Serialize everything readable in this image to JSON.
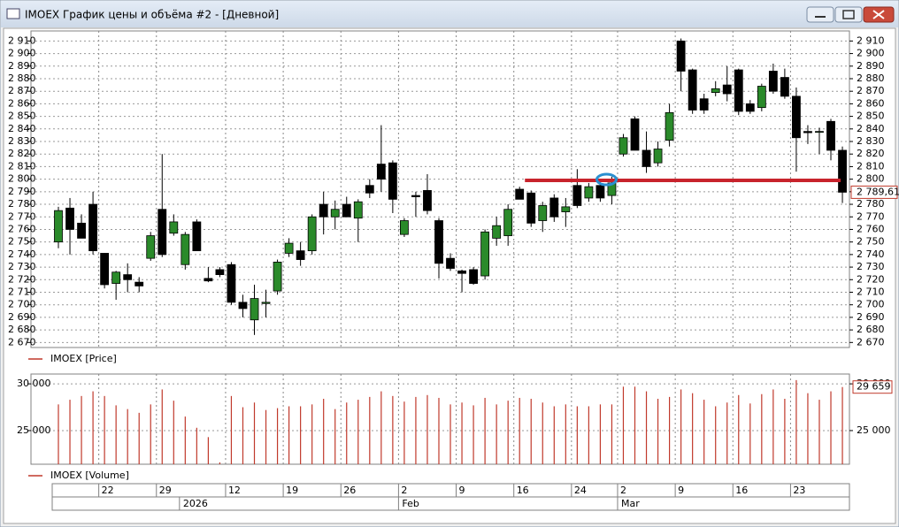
{
  "window_title": "IMOEX График цены и объёма #2 - [Дневной]",
  "chart_data": [
    {
      "type": "candlestick",
      "legend": "IMOEX [Price]",
      "up_color": "#2a8a2a",
      "down_color": "#000000",
      "grid": true,
      "level": 2799,
      "level_color": "#c8232c",
      "open": [
        2750,
        2777,
        2765,
        2780,
        2741,
        2717,
        2724,
        2718,
        2737,
        2776,
        2757,
        2732,
        2766,
        2721,
        2728,
        2732,
        2702,
        2688,
        2701,
        2711,
        2741,
        2743,
        2743,
        2780,
        2770,
        2780,
        2769,
        2795,
        2812,
        2813,
        2756,
        2787,
        2791,
        2767,
        2737,
        2727,
        2728,
        2723,
        2753,
        2755,
        2792,
        2789,
        2767,
        2785,
        2774,
        2795,
        2785,
        2795,
        2787,
        2820,
        2848,
        2823,
        2813,
        2831,
        2910,
        2887,
        2864,
        2869,
        2875,
        2887,
        2860,
        2857,
        2886,
        2881,
        2866,
        2838,
        2838,
        2846,
        2823
      ],
      "high": [
        2778,
        2785,
        2772,
        2790,
        2741,
        2727,
        2733,
        2722,
        2758,
        2820,
        2772,
        2758,
        2768,
        2730,
        2730,
        2734,
        2708,
        2716,
        2712,
        2736,
        2753,
        2750,
        2772,
        2790,
        2783,
        2786,
        2784,
        2800,
        2843,
        2815,
        2769,
        2790,
        2804,
        2769,
        2741,
        2728,
        2730,
        2760,
        2770,
        2780,
        2794,
        2791,
        2782,
        2788,
        2785,
        2808,
        2797,
        2800,
        2802,
        2836,
        2850,
        2838,
        2830,
        2860,
        2912,
        2888,
        2868,
        2878,
        2890,
        2888,
        2863,
        2876,
        2892,
        2888,
        2873,
        2843,
        2841,
        2848,
        2826
      ],
      "low": [
        2745,
        2740,
        2753,
        2740,
        2713,
        2704,
        2710,
        2710,
        2735,
        2738,
        2755,
        2728,
        2743,
        2718,
        2722,
        2700,
        2690,
        2676,
        2690,
        2708,
        2738,
        2731,
        2740,
        2756,
        2760,
        2770,
        2750,
        2785,
        2790,
        2773,
        2754,
        2770,
        2772,
        2721,
        2727,
        2710,
        2716,
        2720,
        2747,
        2747,
        2784,
        2762,
        2758,
        2766,
        2762,
        2777,
        2782,
        2782,
        2780,
        2818,
        2823,
        2805,
        2810,
        2826,
        2870,
        2852,
        2852,
        2866,
        2862,
        2851,
        2852,
        2854,
        2868,
        2864,
        2806,
        2828,
        2820,
        2815,
        2781
      ],
      "close": [
        2775,
        2760,
        2753,
        2743,
        2716,
        2726,
        2720,
        2715,
        2755,
        2740,
        2766,
        2756,
        2743,
        2719,
        2724,
        2702,
        2697,
        2705,
        2702,
        2734,
        2749,
        2736,
        2770,
        2770,
        2776,
        2770,
        2782,
        2789,
        2800,
        2784,
        2767,
        2786,
        2775,
        2733,
        2729,
        2725,
        2717,
        2758,
        2763,
        2776,
        2784,
        2765,
        2779,
        2770,
        2778,
        2779,
        2794,
        2785,
        2797,
        2833,
        2823,
        2810,
        2824,
        2853,
        2886,
        2855,
        2855,
        2872,
        2868,
        2854,
        2854,
        2874,
        2870,
        2866,
        2833,
        2837,
        2838,
        2823,
        2789.61
      ],
      "last_label": "2 789,61",
      "ylim": [
        2666,
        2918
      ],
      "yticks": [
        {
          "value": 2670,
          "label": "2 670"
        },
        {
          "value": 2680,
          "label": "2 680"
        },
        {
          "value": 2690,
          "label": "2 690"
        },
        {
          "value": 2700,
          "label": "2 700"
        },
        {
          "value": 2710,
          "label": "2 710"
        },
        {
          "value": 2720,
          "label": "2 720"
        },
        {
          "value": 2730,
          "label": "2 730"
        },
        {
          "value": 2740,
          "label": "2 740"
        },
        {
          "value": 2750,
          "label": "2 750"
        },
        {
          "value": 2760,
          "label": "2 760"
        },
        {
          "value": 2770,
          "label": "2 770"
        },
        {
          "value": 2780,
          "label": "2 780"
        },
        {
          "value": 2790,
          "label": "2 790"
        },
        {
          "value": 2800,
          "label": "2 800"
        },
        {
          "value": 2810,
          "label": "2 810"
        },
        {
          "value": 2820,
          "label": "2 820"
        },
        {
          "value": 2830,
          "label": "2 830"
        },
        {
          "value": 2840,
          "label": "2 840"
        },
        {
          "value": 2850,
          "label": "2 850"
        },
        {
          "value": 2860,
          "label": "2 860"
        },
        {
          "value": 2870,
          "label": "2 870"
        },
        {
          "value": 2880,
          "label": "2 880"
        },
        {
          "value": 2890,
          "label": "2 890"
        },
        {
          "value": 2900,
          "label": "2 900"
        },
        {
          "value": 2910,
          "label": "2 910"
        }
      ]
    },
    {
      "type": "bar",
      "legend": "IMOEX [Volume]",
      "color": "#c0392b",
      "values": [
        27800,
        28300,
        28700,
        29200,
        28700,
        27700,
        27300,
        26900,
        27800,
        29400,
        28200,
        26500,
        25300,
        24300,
        21600,
        28700,
        27500,
        28000,
        27200,
        27400,
        27600,
        27600,
        27800,
        28400,
        27300,
        28000,
        28300,
        28600,
        29200,
        28700,
        28100,
        28600,
        28800,
        28500,
        27800,
        28000,
        27700,
        28500,
        27800,
        28200,
        28500,
        28400,
        28000,
        27600,
        27800,
        27600,
        27600,
        27800,
        27800,
        29700,
        29700,
        29200,
        28400,
        28600,
        29400,
        29000,
        28300,
        27600,
        28000,
        28800,
        27900,
        28900,
        29400,
        28400,
        30400,
        29000,
        28300,
        29200,
        29659
      ],
      "last_label": "29 659",
      "ylim": [
        21400,
        31050
      ],
      "yticks": [
        {
          "value": 25000,
          "label": "25 000"
        },
        {
          "value": 30000,
          "label": "30 000"
        }
      ]
    }
  ],
  "time_axis": {
    "days": [
      {
        "value": 4,
        "label": "22"
      },
      {
        "value": 9,
        "label": "29"
      },
      {
        "value": 15,
        "label": "12"
      },
      {
        "value": 20,
        "label": "19"
      },
      {
        "value": 25,
        "label": "26"
      },
      {
        "value": 30,
        "label": "2"
      },
      {
        "value": 35,
        "label": "9"
      },
      {
        "value": 40,
        "label": "16"
      },
      {
        "value": 45,
        "label": "24"
      },
      {
        "value": 49,
        "label": "2"
      },
      {
        "value": 54,
        "label": "9"
      },
      {
        "value": 59,
        "label": "16"
      },
      {
        "value": 64,
        "label": "23"
      }
    ],
    "months": [
      {
        "value": 11,
        "label": "2026"
      },
      {
        "value": 30,
        "label": "Feb"
      },
      {
        "value": 49,
        "label": "Mar"
      }
    ]
  }
}
